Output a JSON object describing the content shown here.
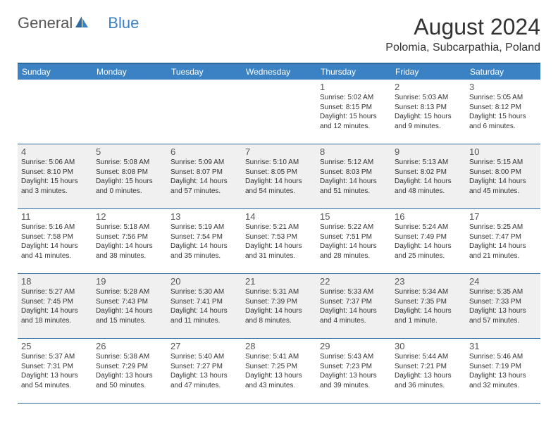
{
  "brand": {
    "part1": "General",
    "part2": "Blue"
  },
  "title": "August 2024",
  "location": "Polomia, Subcarpathia, Poland",
  "colors": {
    "header_bg": "#3b82c4",
    "header_text": "#ffffff",
    "border": "#2c6aa0",
    "alt_row": "#f0f0f0",
    "text": "#333333",
    "logo_blue": "#3b82c4",
    "logo_grey": "#555555"
  },
  "weekdays": [
    "Sunday",
    "Monday",
    "Tuesday",
    "Wednesday",
    "Thursday",
    "Friday",
    "Saturday"
  ],
  "weeks": [
    [
      null,
      null,
      null,
      null,
      {
        "n": "1",
        "sr": "Sunrise: 5:02 AM",
        "ss": "Sunset: 8:15 PM",
        "dl": "Daylight: 15 hours and 12 minutes."
      },
      {
        "n": "2",
        "sr": "Sunrise: 5:03 AM",
        "ss": "Sunset: 8:13 PM",
        "dl": "Daylight: 15 hours and 9 minutes."
      },
      {
        "n": "3",
        "sr": "Sunrise: 5:05 AM",
        "ss": "Sunset: 8:12 PM",
        "dl": "Daylight: 15 hours and 6 minutes."
      }
    ],
    [
      {
        "n": "4",
        "sr": "Sunrise: 5:06 AM",
        "ss": "Sunset: 8:10 PM",
        "dl": "Daylight: 15 hours and 3 minutes."
      },
      {
        "n": "5",
        "sr": "Sunrise: 5:08 AM",
        "ss": "Sunset: 8:08 PM",
        "dl": "Daylight: 15 hours and 0 minutes."
      },
      {
        "n": "6",
        "sr": "Sunrise: 5:09 AM",
        "ss": "Sunset: 8:07 PM",
        "dl": "Daylight: 14 hours and 57 minutes."
      },
      {
        "n": "7",
        "sr": "Sunrise: 5:10 AM",
        "ss": "Sunset: 8:05 PM",
        "dl": "Daylight: 14 hours and 54 minutes."
      },
      {
        "n": "8",
        "sr": "Sunrise: 5:12 AM",
        "ss": "Sunset: 8:03 PM",
        "dl": "Daylight: 14 hours and 51 minutes."
      },
      {
        "n": "9",
        "sr": "Sunrise: 5:13 AM",
        "ss": "Sunset: 8:02 PM",
        "dl": "Daylight: 14 hours and 48 minutes."
      },
      {
        "n": "10",
        "sr": "Sunrise: 5:15 AM",
        "ss": "Sunset: 8:00 PM",
        "dl": "Daylight: 14 hours and 45 minutes."
      }
    ],
    [
      {
        "n": "11",
        "sr": "Sunrise: 5:16 AM",
        "ss": "Sunset: 7:58 PM",
        "dl": "Daylight: 14 hours and 41 minutes."
      },
      {
        "n": "12",
        "sr": "Sunrise: 5:18 AM",
        "ss": "Sunset: 7:56 PM",
        "dl": "Daylight: 14 hours and 38 minutes."
      },
      {
        "n": "13",
        "sr": "Sunrise: 5:19 AM",
        "ss": "Sunset: 7:54 PM",
        "dl": "Daylight: 14 hours and 35 minutes."
      },
      {
        "n": "14",
        "sr": "Sunrise: 5:21 AM",
        "ss": "Sunset: 7:53 PM",
        "dl": "Daylight: 14 hours and 31 minutes."
      },
      {
        "n": "15",
        "sr": "Sunrise: 5:22 AM",
        "ss": "Sunset: 7:51 PM",
        "dl": "Daylight: 14 hours and 28 minutes."
      },
      {
        "n": "16",
        "sr": "Sunrise: 5:24 AM",
        "ss": "Sunset: 7:49 PM",
        "dl": "Daylight: 14 hours and 25 minutes."
      },
      {
        "n": "17",
        "sr": "Sunrise: 5:25 AM",
        "ss": "Sunset: 7:47 PM",
        "dl": "Daylight: 14 hours and 21 minutes."
      }
    ],
    [
      {
        "n": "18",
        "sr": "Sunrise: 5:27 AM",
        "ss": "Sunset: 7:45 PM",
        "dl": "Daylight: 14 hours and 18 minutes."
      },
      {
        "n": "19",
        "sr": "Sunrise: 5:28 AM",
        "ss": "Sunset: 7:43 PM",
        "dl": "Daylight: 14 hours and 15 minutes."
      },
      {
        "n": "20",
        "sr": "Sunrise: 5:30 AM",
        "ss": "Sunset: 7:41 PM",
        "dl": "Daylight: 14 hours and 11 minutes."
      },
      {
        "n": "21",
        "sr": "Sunrise: 5:31 AM",
        "ss": "Sunset: 7:39 PM",
        "dl": "Daylight: 14 hours and 8 minutes."
      },
      {
        "n": "22",
        "sr": "Sunrise: 5:33 AM",
        "ss": "Sunset: 7:37 PM",
        "dl": "Daylight: 14 hours and 4 minutes."
      },
      {
        "n": "23",
        "sr": "Sunrise: 5:34 AM",
        "ss": "Sunset: 7:35 PM",
        "dl": "Daylight: 14 hours and 1 minute."
      },
      {
        "n": "24",
        "sr": "Sunrise: 5:35 AM",
        "ss": "Sunset: 7:33 PM",
        "dl": "Daylight: 13 hours and 57 minutes."
      }
    ],
    [
      {
        "n": "25",
        "sr": "Sunrise: 5:37 AM",
        "ss": "Sunset: 7:31 PM",
        "dl": "Daylight: 13 hours and 54 minutes."
      },
      {
        "n": "26",
        "sr": "Sunrise: 5:38 AM",
        "ss": "Sunset: 7:29 PM",
        "dl": "Daylight: 13 hours and 50 minutes."
      },
      {
        "n": "27",
        "sr": "Sunrise: 5:40 AM",
        "ss": "Sunset: 7:27 PM",
        "dl": "Daylight: 13 hours and 47 minutes."
      },
      {
        "n": "28",
        "sr": "Sunrise: 5:41 AM",
        "ss": "Sunset: 7:25 PM",
        "dl": "Daylight: 13 hours and 43 minutes."
      },
      {
        "n": "29",
        "sr": "Sunrise: 5:43 AM",
        "ss": "Sunset: 7:23 PM",
        "dl": "Daylight: 13 hours and 39 minutes."
      },
      {
        "n": "30",
        "sr": "Sunrise: 5:44 AM",
        "ss": "Sunset: 7:21 PM",
        "dl": "Daylight: 13 hours and 36 minutes."
      },
      {
        "n": "31",
        "sr": "Sunrise: 5:46 AM",
        "ss": "Sunset: 7:19 PM",
        "dl": "Daylight: 13 hours and 32 minutes."
      }
    ]
  ]
}
